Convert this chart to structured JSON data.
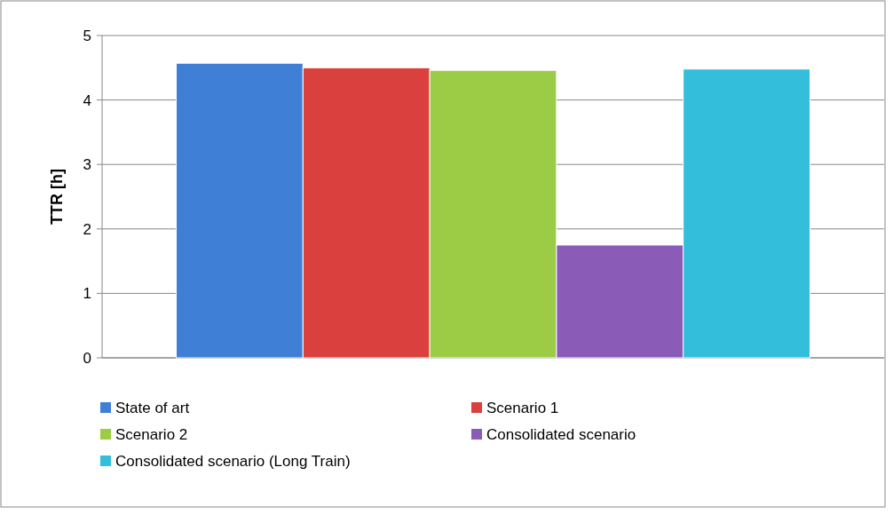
{
  "chart_data": {
    "type": "bar",
    "ylabel": "TTR [h]",
    "categories": [
      null
    ],
    "series": [
      {
        "name": "State of art",
        "color": "#3f7fd6",
        "values": [
          4.57
        ]
      },
      {
        "name": "Scenario 1",
        "color": "#d9403e",
        "values": [
          4.5
        ]
      },
      {
        "name": "Scenario 2",
        "color": "#9ccc45",
        "values": [
          4.46
        ]
      },
      {
        "name": "Consolidated scenario",
        "color": "#8a5cb8",
        "values": [
          1.75
        ]
      },
      {
        "name": "Consolidated scenario (Long Train)",
        "color": "#33bedb",
        "values": [
          4.48
        ]
      }
    ],
    "ylim": [
      0,
      5
    ],
    "yticks": [
      0,
      1,
      2,
      3,
      4,
      5
    ],
    "grid": "y",
    "legend": "bottom"
  }
}
